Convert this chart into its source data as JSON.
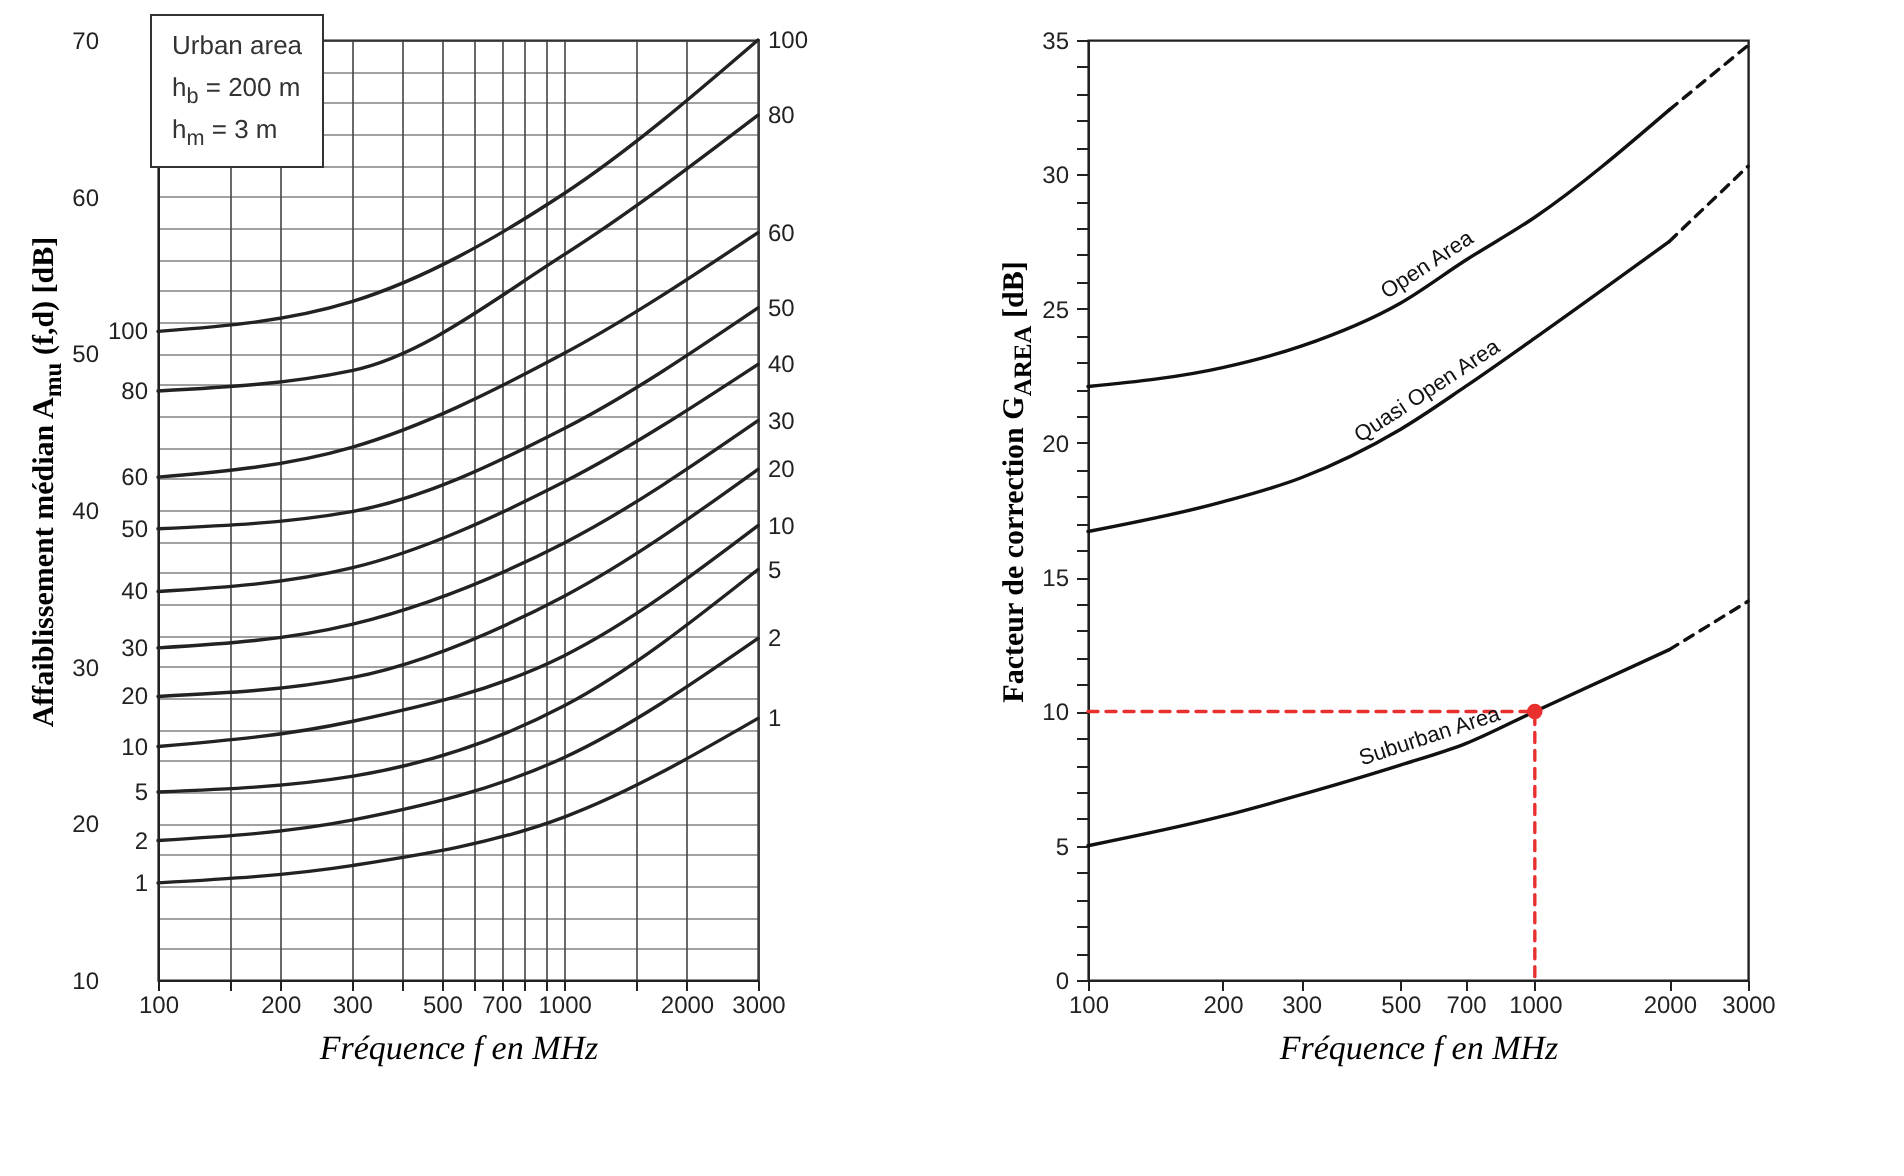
{
  "chart_data": [
    {
      "type": "line",
      "xlabel": "Fréquence f en MHz",
      "ylabel": "Affaiblissement médian A$_{mu}$ (f,d)  [dB]",
      "log": "x",
      "grid": true,
      "annotations": [
        "Urban area",
        "h$_{b}$ = 200 m",
        "h$_{m}$ = 3 m"
      ],
      "x": [
        100,
        300,
        1000,
        3000
      ],
      "xlim": [
        100,
        3000
      ],
      "xticks": [
        100,
        {
          "value": 150,
          "label": null
        },
        200,
        300,
        {
          "value": 400,
          "label": null
        },
        500,
        {
          "value": 600,
          "label": null
        },
        700,
        {
          "value": 800,
          "label": null
        },
        {
          "value": 900,
          "label": null
        },
        1000,
        {
          "value": 1500,
          "label": null
        },
        2000,
        3000
      ],
      "ylim": [
        10,
        70
      ],
      "yticks": [
        10,
        {
          "value": 12,
          "label": null
        },
        {
          "value": 14,
          "label": null
        },
        {
          "value": 16,
          "label": null
        },
        {
          "value": 18,
          "label": null
        },
        20,
        {
          "value": 22,
          "label": null
        },
        {
          "value": 24,
          "label": null
        },
        {
          "value": 26,
          "label": null
        },
        {
          "value": 28,
          "label": null
        },
        30,
        {
          "value": 32,
          "label": null
        },
        {
          "value": 34,
          "label": null
        },
        {
          "value": 36,
          "label": null
        },
        {
          "value": 38,
          "label": null
        },
        40,
        {
          "value": 42,
          "label": null
        },
        {
          "value": 44,
          "label": null
        },
        {
          "value": 46,
          "label": null
        },
        {
          "value": 48,
          "label": null
        },
        50,
        {
          "value": 52,
          "label": null
        },
        {
          "value": 54,
          "label": null
        },
        {
          "value": 56,
          "label": null
        },
        {
          "value": 58,
          "label": null
        },
        60,
        {
          "value": 62,
          "label": null
        },
        {
          "value": 64,
          "label": null
        },
        {
          "value": 66,
          "label": null
        },
        {
          "value": 68,
          "label": null
        },
        70
      ],
      "series": [
        {
          "name": "1",
          "color": "#222222",
          "values": [
            16.2,
            17.3,
            20.4,
            26.7
          ]
        },
        {
          "name": "2",
          "color": "#222222",
          "values": [
            18.9,
            20.2,
            24.2,
            31.8
          ]
        },
        {
          "name": "5",
          "color": "#222222",
          "values": [
            22.0,
            23.0,
            27.5,
            36.2
          ]
        },
        {
          "name": "10",
          "color": "#222222",
          "values": [
            24.9,
            26.5,
            30.7,
            39.0
          ]
        },
        {
          "name": "20",
          "color": "#222222",
          "values": [
            28.1,
            29.3,
            34.5,
            42.6
          ]
        },
        {
          "name": "30",
          "color": "#222222",
          "values": [
            31.2,
            32.7,
            37.9,
            45.7
          ]
        },
        {
          "name": "40",
          "color": "#222222",
          "values": [
            34.8,
            36.3,
            41.8,
            49.3
          ]
        },
        {
          "name": "50",
          "color": "#222222",
          "values": [
            38.8,
            39.9,
            45.2,
            52.9
          ]
        },
        {
          "name": "60",
          "color": "#222222",
          "values": [
            42.1,
            44.0,
            50.0,
            57.7
          ]
        },
        {
          "name": "80",
          "color": "#222222",
          "values": [
            47.6,
            48.9,
            56.3,
            65.2
          ]
        },
        {
          "name": "100",
          "color": "#222222",
          "values": [
            51.4,
            53.3,
            60.2,
            70.0
          ]
        }
      ]
    },
    {
      "type": "line",
      "xlabel": "Fréquence f en MHz",
      "ylabel": "Facteur de correction  G$_{AREA}$ [dB]",
      "log": "x",
      "xlim": [
        100,
        3000
      ],
      "xticks": [
        100,
        200,
        300,
        500,
        700,
        1000,
        2000,
        3000
      ],
      "ylim": [
        0,
        35
      ],
      "yticks": [
        0,
        {
          "value": 1,
          "label": null
        },
        {
          "value": 2,
          "label": null
        },
        {
          "value": 3,
          "label": null
        },
        {
          "value": 4,
          "label": null
        },
        5,
        {
          "value": 6,
          "label": null
        },
        {
          "value": 7,
          "label": null
        },
        {
          "value": 8,
          "label": null
        },
        {
          "value": 9,
          "label": null
        },
        10,
        {
          "value": 11,
          "label": null
        },
        {
          "value": 12,
          "label": null
        },
        {
          "value": 13,
          "label": null
        },
        {
          "value": 14,
          "label": null
        },
        15,
        {
          "value": 16,
          "label": null
        },
        {
          "value": 17,
          "label": null
        },
        {
          "value": 18,
          "label": null
        },
        {
          "value": 19,
          "label": null
        },
        20,
        {
          "value": 21,
          "label": null
        },
        {
          "value": 22,
          "label": null
        },
        {
          "value": 23,
          "label": null
        },
        {
          "value": 24,
          "label": null
        },
        25,
        {
          "value": 26,
          "label": null
        },
        {
          "value": 27,
          "label": null
        },
        {
          "value": 28,
          "label": null
        },
        {
          "value": 29,
          "label": null
        },
        30,
        {
          "value": 31,
          "label": null
        },
        {
          "value": 32,
          "label": null
        },
        {
          "value": 33,
          "label": null
        },
        {
          "value": 34,
          "label": null
        },
        35
      ],
      "series": [
        {
          "name": "Open Area",
          "color": "#111111",
          "x": [
            100,
            200,
            300,
            500,
            700,
            1000,
            2000
          ],
          "values": [
            22.1,
            22.8,
            23.6,
            25.2,
            26.8,
            28.4,
            32.4
          ]
        },
        {
          "color": "#111111",
          "line_style": "dashed",
          "x": [
            2000,
            3000
          ],
          "values": [
            32.4,
            34.8
          ]
        },
        {
          "name": "Quasi Open Area",
          "color": "#111111",
          "x": [
            100,
            200,
            300,
            500,
            700,
            1000,
            2000
          ],
          "values": [
            16.7,
            17.8,
            18.7,
            20.5,
            22.1,
            23.9,
            27.5
          ]
        },
        {
          "color": "#111111",
          "line_style": "dashed",
          "x": [
            2000,
            3000
          ],
          "values": [
            27.5,
            30.3
          ]
        },
        {
          "name": "Suburban Area",
          "color": "#111111",
          "x": [
            100,
            200,
            300,
            500,
            700,
            1000,
            2000
          ],
          "values": [
            5.0,
            6.1,
            6.9,
            8.0,
            8.8,
            10.0,
            12.3
          ]
        },
        {
          "color": "#111111",
          "line_style": "dashed",
          "x": [
            2000,
            3000
          ],
          "values": [
            12.3,
            14.1
          ]
        },
        {
          "color": "#e8312f",
          "line_style": "dashed",
          "x": [
            100,
            1000,
            1000
          ],
          "values": [
            10,
            10,
            0
          ]
        },
        {
          "type": "scatter",
          "marker": "circle",
          "color": "#e8312f",
          "x": [
            1000
          ],
          "values": [
            10
          ]
        }
      ]
    }
  ]
}
